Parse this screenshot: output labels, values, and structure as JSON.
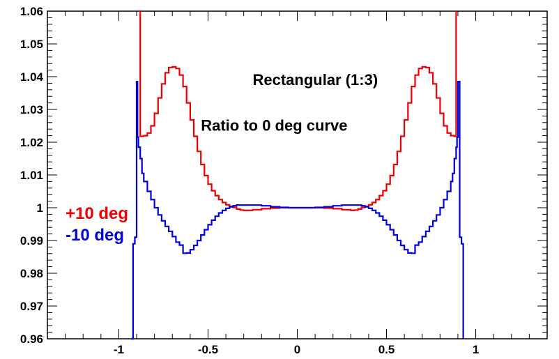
{
  "chart_data": {
    "type": "line",
    "title": "",
    "xlabel": "",
    "ylabel": "",
    "xlim": [
      -1.4,
      1.4
    ],
    "ylim": [
      0.96,
      1.06
    ],
    "grid": false,
    "x_ticks": [
      -1,
      -0.5,
      0,
      0.5,
      1
    ],
    "x_tick_labels": [
      "-1",
      "-0.5",
      "0",
      "0.5",
      "1"
    ],
    "y_ticks": [
      0.96,
      0.97,
      0.98,
      0.99,
      1.0,
      1.01,
      1.02,
      1.03,
      1.04,
      1.05,
      1.06
    ],
    "y_tick_labels": [
      "0.96",
      "0.97",
      "0.98",
      "0.99",
      "1",
      "1.01",
      "1.02",
      "1.03",
      "1.04",
      "1.05",
      "1.06"
    ],
    "annotations": [
      {
        "text": "Rectangular (1:3)",
        "x": -0.25,
        "y": 1.0375
      },
      {
        "text": "Ratio to 0 deg curve",
        "x": -0.54,
        "y": 1.0235
      }
    ],
    "legend": {
      "placement": "left",
      "entries": [
        {
          "label": "+10 deg",
          "color": "#ee0000"
        },
        {
          "label": "-10 deg",
          "color": "#0000dd"
        }
      ]
    },
    "series": [
      {
        "name": "+10 deg",
        "color": "#ee0000",
        "x": [
          -0.89,
          -0.88,
          -0.86,
          -0.84,
          -0.82,
          -0.8,
          -0.78,
          -0.76,
          -0.74,
          -0.72,
          -0.7,
          -0.68,
          -0.66,
          -0.64,
          -0.62,
          -0.6,
          -0.58,
          -0.56,
          -0.54,
          -0.52,
          -0.5,
          -0.48,
          -0.46,
          -0.44,
          -0.42,
          -0.4,
          -0.38,
          -0.36,
          -0.34,
          -0.32,
          -0.3,
          -0.25,
          -0.2,
          -0.15,
          -0.1,
          -0.05,
          0,
          0.05,
          0.1,
          0.15,
          0.2,
          0.25,
          0.3,
          0.32,
          0.34,
          0.36,
          0.38,
          0.4,
          0.42,
          0.44,
          0.46,
          0.48,
          0.5,
          0.52,
          0.54,
          0.56,
          0.58,
          0.6,
          0.62,
          0.64,
          0.66,
          0.68,
          0.7,
          0.72,
          0.74,
          0.76,
          0.78,
          0.8,
          0.82,
          0.84,
          0.86,
          0.88,
          0.89
        ],
        "y": [
          1.06,
          1.0218,
          1.022,
          1.0228,
          1.025,
          1.0288,
          1.0335,
          1.0378,
          1.0412,
          1.0428,
          1.043,
          1.0425,
          1.0405,
          1.037,
          1.032,
          1.0268,
          1.0218,
          1.0172,
          1.0132,
          1.0098,
          1.0072,
          1.0052,
          1.0037,
          1.0025,
          1.0016,
          1.0009,
          1.0004,
          1.0001,
          0.9996,
          0.9993,
          0.9992,
          0.9994,
          0.9997,
          0.9999,
          1.0,
          1.0,
          1.0,
          1.0,
          1.0,
          0.9999,
          0.9997,
          0.9994,
          0.9992,
          0.9993,
          0.9996,
          1.0001,
          1.0004,
          1.0009,
          1.0016,
          1.0025,
          1.0037,
          1.0052,
          1.0072,
          1.0098,
          1.0132,
          1.0172,
          1.0218,
          1.0268,
          1.032,
          1.037,
          1.0405,
          1.0425,
          1.043,
          1.0428,
          1.0412,
          1.0378,
          1.0335,
          1.0288,
          1.025,
          1.0228,
          1.022,
          1.0218,
          1.06
        ]
      },
      {
        "name": "-10 deg",
        "color": "#0000dd",
        "x": [
          -0.93,
          -0.92,
          -0.91,
          -0.9,
          -0.895,
          -0.89,
          -0.88,
          -0.87,
          -0.86,
          -0.84,
          -0.82,
          -0.8,
          -0.78,
          -0.76,
          -0.74,
          -0.72,
          -0.7,
          -0.68,
          -0.66,
          -0.64,
          -0.62,
          -0.6,
          -0.58,
          -0.56,
          -0.54,
          -0.52,
          -0.5,
          -0.48,
          -0.46,
          -0.44,
          -0.42,
          -0.4,
          -0.38,
          -0.36,
          -0.34,
          -0.3,
          -0.25,
          -0.2,
          -0.15,
          -0.1,
          -0.05,
          0,
          0.05,
          0.1,
          0.15,
          0.2,
          0.25,
          0.3,
          0.34,
          0.36,
          0.38,
          0.4,
          0.42,
          0.44,
          0.46,
          0.48,
          0.5,
          0.52,
          0.54,
          0.56,
          0.58,
          0.6,
          0.62,
          0.64,
          0.66,
          0.68,
          0.7,
          0.72,
          0.74,
          0.76,
          0.78,
          0.8,
          0.82,
          0.84,
          0.86,
          0.87,
          0.88,
          0.89,
          0.895,
          0.9,
          0.91,
          0.92,
          0.93
        ],
        "y": [
          0.96,
          0.989,
          0.991,
          1.0385,
          1.0215,
          1.0185,
          1.015,
          1.0105,
          1.008,
          1.005,
          1.0025,
          1.0,
          0.9978,
          0.996,
          0.9943,
          0.9928,
          0.9912,
          0.9895,
          0.9886,
          0.9861,
          0.9862,
          0.9872,
          0.9885,
          0.99,
          0.9917,
          0.9933,
          0.9948,
          0.9962,
          0.9974,
          0.9984,
          0.9992,
          0.9998,
          1.0003,
          1.0006,
          1.0008,
          1.0008,
          1.0008,
          1.0006,
          1.0003,
          1.0001,
          1.0,
          1.0,
          1.0,
          1.0001,
          1.0003,
          1.0006,
          1.0008,
          1.0008,
          1.0008,
          1.0006,
          1.0003,
          0.9998,
          0.9992,
          0.9984,
          0.9974,
          0.9962,
          0.9948,
          0.9933,
          0.9917,
          0.99,
          0.9885,
          0.9872,
          0.9862,
          0.9861,
          0.9886,
          0.9895,
          0.9912,
          0.9928,
          0.9943,
          0.996,
          0.9978,
          1.0,
          1.0025,
          1.005,
          1.008,
          1.0105,
          1.015,
          1.0185,
          1.0215,
          1.0385,
          0.991,
          0.989,
          0.96
        ]
      }
    ]
  }
}
